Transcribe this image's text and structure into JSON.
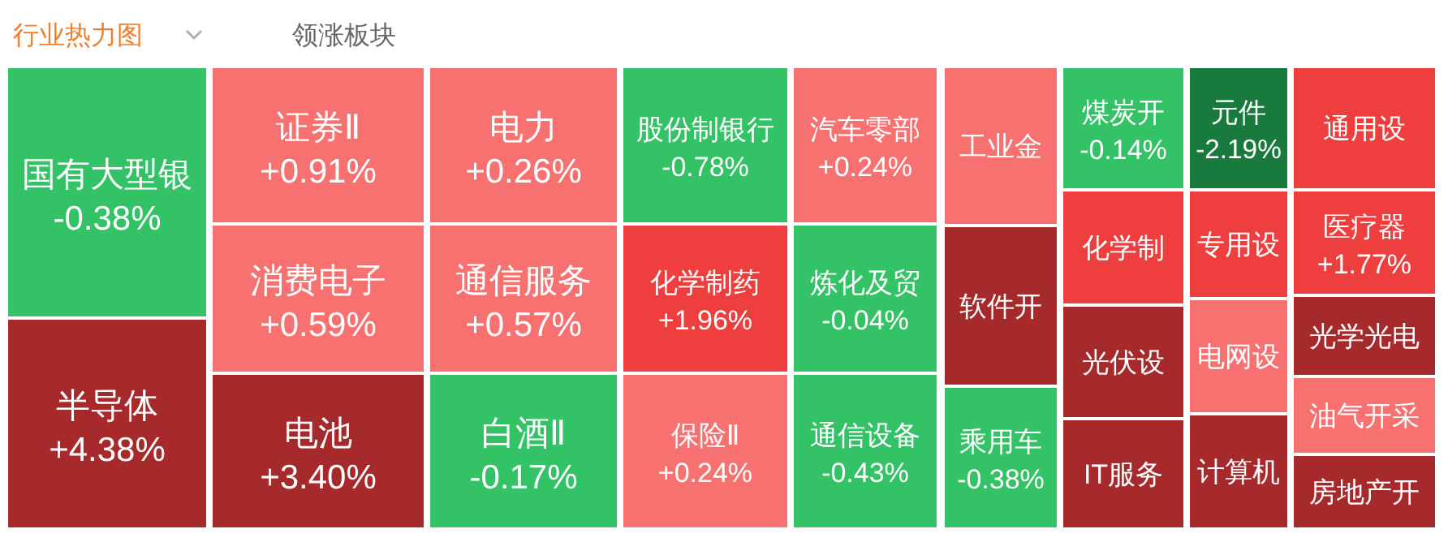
{
  "chart_data": {
    "type": "other",
    "title": "行业热力图",
    "annotations": [
      "领涨板块"
    ],
    "categories": [
      "国有大型银",
      "半导体",
      "证券Ⅱ",
      "消费电子",
      "电池",
      "电力",
      "通信服务",
      "白酒Ⅱ",
      "股份制银行",
      "化学制药",
      "保险Ⅱ",
      "汽车零部",
      "炼化及贸",
      "通信设备",
      "工业金",
      "软件开",
      "乘用车",
      "煤炭开",
      "化学制",
      "光伏设",
      "IT服务",
      "元件",
      "专用设",
      "电网设",
      "计算机",
      "通用设",
      "医疗器",
      "光学光电",
      "油气开采",
      "房地产开"
    ],
    "values": [
      -0.38,
      4.38,
      0.91,
      0.59,
      3.4,
      0.26,
      0.57,
      -0.17,
      -0.78,
      1.96,
      0.24,
      0.24,
      -0.04,
      -0.43,
      null,
      null,
      -0.38,
      -0.14,
      null,
      null,
      null,
      -2.19,
      null,
      null,
      null,
      null,
      1.77,
      null,
      null,
      null
    ],
    "value_labels": [
      "-0.38%",
      "+4.38%",
      "+0.91%",
      "+0.59%",
      "+3.40%",
      "+0.26%",
      "+0.57%",
      "-0.17%",
      "-0.78%",
      "+1.96%",
      "+0.24%",
      "+0.24%",
      "-0.04%",
      "-0.43%",
      null,
      null,
      "-0.38%",
      "-0.14%",
      null,
      null,
      null,
      "-2.19%",
      null,
      null,
      null,
      null,
      "+1.77%",
      null,
      null,
      null
    ],
    "colors": [
      "#33c366",
      "#a62a2c",
      "#f87171",
      "#f87171",
      "#a62a2c",
      "#f87171",
      "#f87171",
      "#33c366",
      "#33c366",
      "#ee3e3e",
      "#f87171",
      "#f87171",
      "#33c366",
      "#33c366",
      "#f87171",
      "#a62a2c",
      "#33c366",
      "#33c366",
      "#ee3e3e",
      "#a62a2c",
      "#a62a2c",
      "#187a3c",
      "#ee3e3e",
      "#f87171",
      "#a62a2c",
      "#ee3e3e",
      "#ee3e3e",
      "#a62a2c",
      "#f87171",
      "#a62a2c"
    ]
  }
}
